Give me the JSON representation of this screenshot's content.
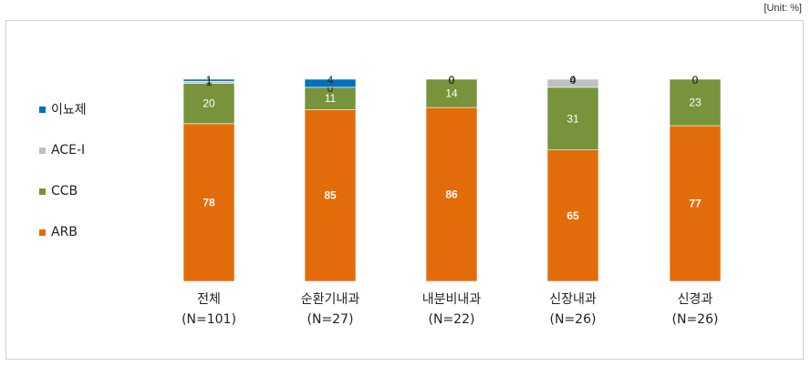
{
  "unit_label": "[Unit: %]",
  "chart_data": {
    "type": "bar",
    "stacked": true,
    "categories": [
      "전체",
      "순환기내과",
      "내분비내과",
      "신장내과",
      "신경과"
    ],
    "category_n": [
      "(N=101)",
      "(N=27)",
      "(N=22)",
      "(N=26)",
      "(N=26)"
    ],
    "series": [
      {
        "name": "ARB",
        "color": "#e36c0a",
        "values": [
          78,
          85,
          86,
          65,
          77
        ],
        "label_color": "#ffffff",
        "label_bold": true
      },
      {
        "name": "CCB",
        "color": "#77933c",
        "values": [
          20,
          11,
          14,
          31,
          23
        ],
        "label_color": "#ffffff",
        "label_bold": false
      },
      {
        "name": "ACE-I",
        "color": "#c0c0c0",
        "values": [
          1,
          0,
          0,
          4,
          0
        ],
        "label_color": "#222222",
        "label_bold": false
      },
      {
        "name": "이뇨제",
        "color": "#0070c0",
        "values": [
          1,
          4,
          0,
          0,
          0
        ],
        "label_color": "#222222",
        "label_bold": false
      }
    ],
    "ylim": [
      0,
      100
    ],
    "grid": false,
    "legend": "left"
  }
}
